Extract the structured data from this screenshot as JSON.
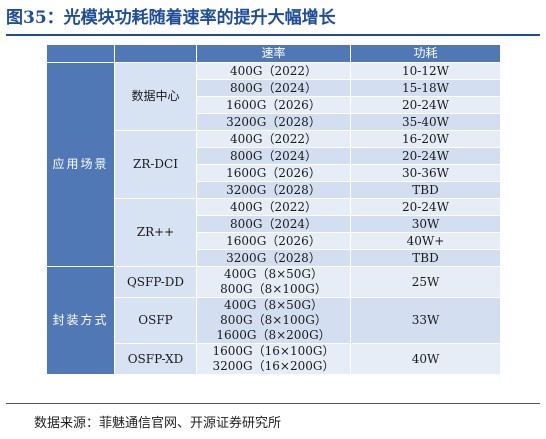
{
  "title": "图35：光模块功耗随着速率的提升大幅增长",
  "table": {
    "headers": {
      "corner1": "",
      "corner2": "",
      "rate": "速率",
      "power": "功耗"
    },
    "categories": {
      "application": "应用场景",
      "package": "封装方式"
    },
    "groups": [
      {
        "label": "数据中心",
        "rows": [
          {
            "rate": "400G（2022）",
            "power": "10-12W"
          },
          {
            "rate": "800G（2024）",
            "power": "15-18W"
          },
          {
            "rate": "1600G（2026）",
            "power": "20-24W"
          },
          {
            "rate": "3200G（2028）",
            "power": "35-40W"
          }
        ]
      },
      {
        "label": "ZR-DCI",
        "rows": [
          {
            "rate": "400G（2022）",
            "power": "16-20W"
          },
          {
            "rate": "800G（2024）",
            "power": "20-24W"
          },
          {
            "rate": "1600G（2026）",
            "power": "30-36W"
          },
          {
            "rate": "3200G（2028）",
            "power": "TBD"
          }
        ]
      },
      {
        "label": "ZR++",
        "rows": [
          {
            "rate": "400G（2022）",
            "power": "20-24W"
          },
          {
            "rate": "800G（2024）",
            "power": "30W"
          },
          {
            "rate": "1600G（2026）",
            "power": "40W+"
          },
          {
            "rate": "3200G（2028）",
            "power": "TBD"
          }
        ]
      }
    ],
    "packages": [
      {
        "label": "QSFP-DD",
        "rates": [
          "400G（8×50G）",
          "800G（8×100G）"
        ],
        "power": "25W"
      },
      {
        "label": "OSFP",
        "rates": [
          "400G（8×50G）",
          "800G（8×100G）",
          "1600G（8×200G）"
        ],
        "power": "33W"
      },
      {
        "label": "OSFP-XD",
        "rates": [
          "1600G（16×100G）",
          "3200G（16×200G）"
        ],
        "power": "40W"
      }
    ]
  },
  "source": "数据来源：菲魅通信官网、开源证券研究所"
}
